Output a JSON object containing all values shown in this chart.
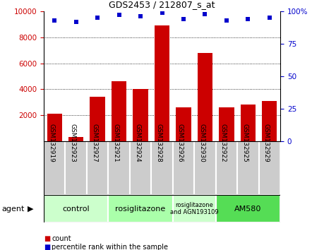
{
  "title": "GDS2453 / 212807_s_at",
  "samples": [
    "GSM132919",
    "GSM132923",
    "GSM132927",
    "GSM132921",
    "GSM132924",
    "GSM132928",
    "GSM132926",
    "GSM132930",
    "GSM132922",
    "GSM132925",
    "GSM132929"
  ],
  "counts": [
    2100,
    300,
    3400,
    4600,
    4000,
    8900,
    2600,
    6800,
    2600,
    2800,
    3100
  ],
  "percentiles": [
    93,
    92,
    95,
    97,
    96,
    99,
    94,
    98,
    93,
    94,
    95
  ],
  "bar_color": "#cc0000",
  "dot_color": "#0000cc",
  "ylim_left": [
    0,
    10000
  ],
  "ylim_right": [
    0,
    100
  ],
  "yticks_left": [
    2000,
    4000,
    6000,
    8000,
    10000
  ],
  "yticks_right": [
    0,
    25,
    50,
    75,
    100
  ],
  "groups": [
    {
      "label": "control",
      "start": 0,
      "end": 3,
      "color": "#ccffcc"
    },
    {
      "label": "rosiglitazone",
      "start": 3,
      "end": 6,
      "color": "#aaffaa"
    },
    {
      "label": "rosiglitazone\nand AGN193109",
      "start": 6,
      "end": 8,
      "color": "#ccffcc"
    },
    {
      "label": "AM580",
      "start": 8,
      "end": 11,
      "color": "#55dd55"
    }
  ],
  "agent_label": "agent",
  "legend_count_label": "count",
  "legend_percentile_label": "percentile rank within the sample",
  "background_color": "#ffffff",
  "plot_bg_color": "#ffffff",
  "grid_color": "#000000",
  "tick_color_left": "#cc0000",
  "tick_color_right": "#0000cc",
  "sample_bg_color": "#cccccc",
  "border_color": "#000000"
}
